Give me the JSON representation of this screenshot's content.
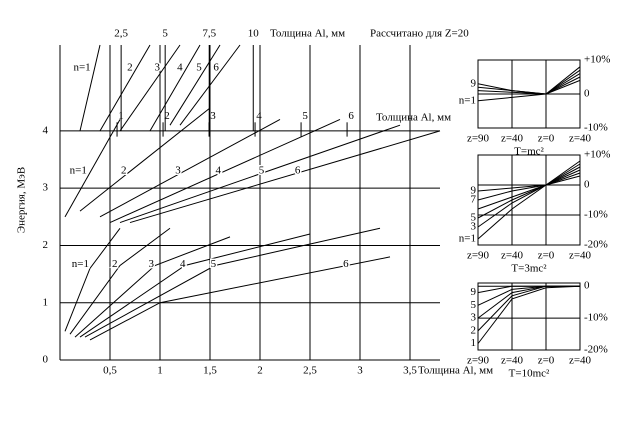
{
  "chart_data": [
    {
      "type": "line",
      "y_label": "Энергия, МэВ",
      "x_label": "Толщина Al, мм",
      "note": "Рассчитано для Z=20",
      "top_axis_label": "Толщина Al, мм",
      "mid_axis_label": "Толщина Al, мм",
      "xlim": [
        0,
        3.8
      ],
      "ylim": [
        0,
        5.5
      ],
      "xticks": [
        {
          "value": 0.5,
          "label": "0,5"
        },
        1,
        {
          "value": 1.5,
          "label": "1,5"
        },
        2,
        {
          "value": 2.5,
          "label": "2,5"
        },
        3,
        {
          "value": 3.5,
          "label": "3,5"
        }
      ],
      "yticks": [
        0,
        1,
        2,
        3,
        4
      ],
      "x2lim": [
        -0.97,
        20.6
      ],
      "x2ticks": [
        {
          "value": 2.5,
          "label": "2,5"
        },
        5,
        {
          "value": 7.5,
          "label": "7,5"
        },
        10
      ],
      "x3lim": [
        -0.24,
        8.02
      ],
      "x3ticks": [
        1,
        2,
        3,
        4,
        5,
        6
      ],
      "grid": true,
      "color": "#000000",
      "bands": [
        {
          "series": [
            {
              "name": "n=1",
              "x": [
                0.05,
                0.3,
                0.6
              ],
              "values": [
                0.5,
                1.6,
                2.3
              ]
            },
            {
              "name": "2",
              "x": [
                0.1,
                0.6,
                1.1
              ],
              "values": [
                0.45,
                1.65,
                2.3
              ]
            },
            {
              "name": "3",
              "x": [
                0.15,
                0.95,
                1.7
              ],
              "values": [
                0.4,
                1.65,
                2.15
              ]
            },
            {
              "name": "4",
              "x": [
                0.2,
                1.25,
                2.5
              ],
              "values": [
                0.4,
                1.65,
                2.2
              ]
            },
            {
              "name": "5",
              "x": [
                0.25,
                1.55,
                3.2
              ],
              "values": [
                0.4,
                1.65,
                2.3
              ]
            },
            {
              "name": "6",
              "x": [
                0.3,
                1.0,
                3.3
              ],
              "values": [
                0.35,
                1.0,
                1.8
              ]
            }
          ]
        },
        {
          "series": [
            {
              "name": "n=1",
              "x": [
                0.05,
                0.6
              ],
              "values": [
                2.5,
                4.2
              ]
            },
            {
              "name": "2",
              "x": [
                0.2,
                1.5
              ],
              "values": [
                2.6,
                4.4
              ]
            },
            {
              "name": "3",
              "x": [
                0.4,
                2.2
              ],
              "values": [
                2.5,
                4.2
              ]
            },
            {
              "name": "4",
              "x": [
                0.5,
                2.8
              ],
              "values": [
                2.4,
                4.2
              ]
            },
            {
              "name": "5",
              "x": [
                0.6,
                3.4
              ],
              "values": [
                2.4,
                4.1
              ]
            },
            {
              "name": "6",
              "x": [
                0.7,
                3.8
              ],
              "values": [
                2.4,
                4.0
              ]
            }
          ]
        },
        {
          "series": [
            {
              "name": "n=1",
              "x": [
                0.2,
                0.4
              ],
              "values": [
                4.0,
                5.5
              ]
            },
            {
              "name": "2",
              "x": [
                0.4,
                0.9
              ],
              "values": [
                4.0,
                5.5
              ]
            },
            {
              "name": "3",
              "x": [
                0.6,
                1.2
              ],
              "values": [
                4.0,
                5.5
              ]
            },
            {
              "name": "4",
              "x": [
                0.9,
                1.4
              ],
              "values": [
                4.0,
                5.5
              ]
            },
            {
              "name": "5",
              "x": [
                1.1,
                1.6
              ],
              "values": [
                4.1,
                5.5
              ]
            },
            {
              "name": "6",
              "x": [
                1.2,
                1.8
              ],
              "values": [
                4.1,
                5.5
              ]
            }
          ]
        }
      ]
    },
    {
      "type": "line",
      "title": "T=mc²",
      "categories": [
        "z=90",
        "z=40",
        "z=0",
        "z=40"
      ],
      "ylim": [
        -10,
        10
      ],
      "yticks": [
        {
          "value": 10,
          "label": "+10%"
        },
        0,
        {
          "value": -10,
          "label": "-10%"
        }
      ],
      "line_labels": [
        "9",
        "n=1"
      ],
      "color": "#000000",
      "series": [
        {
          "values": [
            3,
            1,
            0,
            4
          ]
        },
        {
          "values": [
            2,
            1,
            0,
            5
          ]
        },
        {
          "values": [
            1,
            0.5,
            0,
            6
          ]
        },
        {
          "values": [
            0,
            0,
            0,
            7
          ]
        },
        {
          "values": [
            -2,
            -1,
            0,
            8
          ]
        }
      ]
    },
    {
      "type": "line",
      "title": "T=3mc²",
      "categories": [
        "z=90",
        "z=40",
        "z=0",
        "z=40"
      ],
      "ylim": [
        -20,
        10
      ],
      "yticks": [
        {
          "value": 10,
          "label": "+10%"
        },
        0,
        {
          "value": -10,
          "label": "-10%"
        },
        {
          "value": -20,
          "label": "-20%"
        }
      ],
      "line_labels": [
        "9",
        "7",
        "5",
        "3",
        "n=1"
      ],
      "color": "#000000",
      "series": [
        {
          "values": [
            -2,
            -1,
            0,
            3
          ]
        },
        {
          "values": [
            -5,
            -2,
            0,
            4
          ]
        },
        {
          "values": [
            -8,
            -4,
            0,
            5
          ]
        },
        {
          "values": [
            -11,
            -5,
            0,
            6
          ]
        },
        {
          "values": [
            -14,
            -6,
            0,
            7
          ]
        },
        {
          "values": [
            -18,
            -8,
            0,
            8
          ]
        }
      ]
    },
    {
      "type": "line",
      "title": "T=10mc²",
      "categories": [
        "z=90",
        "z=40",
        "z=0",
        "z=40"
      ],
      "ylim": [
        -20,
        1
      ],
      "yticks": [
        0,
        {
          "value": -10,
          "label": "-10%"
        },
        {
          "value": -20,
          "label": "-20%"
        }
      ],
      "line_labels": [
        "9",
        "5",
        "3",
        "2",
        "1"
      ],
      "color": "#000000",
      "series": [
        {
          "values": [
            -2,
            0,
            0,
            0
          ]
        },
        {
          "values": [
            -6,
            -1,
            0,
            0
          ]
        },
        {
          "values": [
            -10,
            -2,
            0,
            0
          ]
        },
        {
          "values": [
            -14,
            -3,
            0,
            0
          ]
        },
        {
          "values": [
            -18,
            -4,
            -0.5,
            0
          ]
        }
      ]
    }
  ]
}
